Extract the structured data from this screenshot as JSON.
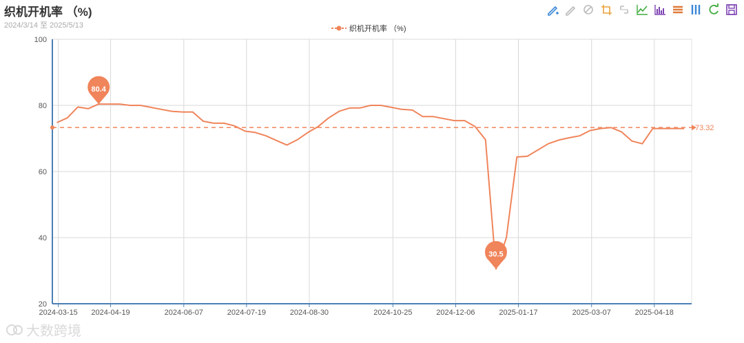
{
  "header": {
    "title": "织机开机率 （%)",
    "date_range": "2024/3/14 至 2025/5/13"
  },
  "toolbar": [
    {
      "name": "mark-line-icon",
      "color": "#3a86d6"
    },
    {
      "name": "eraser-icon",
      "color": "#bbbbbb"
    },
    {
      "name": "clear-icon",
      "color": "#bbbbbb"
    },
    {
      "name": "crop-icon",
      "color": "#e9a23b"
    },
    {
      "name": "zoom-reset-icon",
      "color": "#bbbbbb"
    },
    {
      "name": "line-chart-icon",
      "color": "#3bab3b"
    },
    {
      "name": "bar-chart-icon",
      "color": "#7b3fb3"
    },
    {
      "name": "stack-icon",
      "color": "#e07b39"
    },
    {
      "name": "tiled-icon",
      "color": "#3a86d6"
    },
    {
      "name": "refresh-icon",
      "color": "#3bab3b"
    },
    {
      "name": "save-icon",
      "color": "#7b3fb3"
    }
  ],
  "watermark": "大数跨境",
  "chart_data": {
    "type": "line",
    "series": [
      {
        "name": "织机开机率 （%)",
        "color": "#f0845a",
        "x": [
          "2024-03-14",
          "2024-03-21",
          "2024-03-28",
          "2024-04-04",
          "2024-04-11",
          "2024-04-18",
          "2024-04-25",
          "2024-05-02",
          "2024-05-09",
          "2024-05-16",
          "2024-05-23",
          "2024-05-30",
          "2024-06-06",
          "2024-06-13",
          "2024-06-20",
          "2024-06-27",
          "2024-07-04",
          "2024-07-11",
          "2024-07-18",
          "2024-07-25",
          "2024-08-01",
          "2024-08-08",
          "2024-08-15",
          "2024-08-22",
          "2024-08-29",
          "2024-09-05",
          "2024-09-12",
          "2024-09-19",
          "2024-09-26",
          "2024-10-03",
          "2024-10-10",
          "2024-10-17",
          "2024-10-24",
          "2024-10-31",
          "2024-11-07",
          "2024-11-14",
          "2024-11-21",
          "2024-11-28",
          "2024-12-05",
          "2024-12-12",
          "2024-12-19",
          "2024-12-26",
          "2025-01-02",
          "2025-01-09",
          "2025-01-16",
          "2025-01-23",
          "2025-02-06",
          "2025-02-13",
          "2025-02-20",
          "2025-02-27",
          "2025-03-06",
          "2025-03-13",
          "2025-03-20",
          "2025-03-27",
          "2025-04-03",
          "2025-04-10",
          "2025-04-17",
          "2025-04-24",
          "2025-05-01",
          "2025-05-08"
        ],
        "y": [
          74.8,
          76.2,
          79.5,
          79.0,
          80.4,
          80.4,
          80.4,
          80.0,
          80.0,
          79.4,
          78.8,
          78.2,
          78.0,
          78.0,
          75.2,
          74.6,
          74.6,
          73.8,
          72.2,
          71.8,
          70.8,
          69.4,
          68.0,
          69.6,
          71.8,
          73.6,
          76.2,
          78.2,
          79.2,
          79.2,
          80.0,
          80.0,
          79.4,
          78.8,
          78.6,
          76.6,
          76.6,
          76.0,
          75.4,
          75.4,
          73.6,
          69.6,
          30.5,
          40.0,
          64.4,
          64.6,
          68.4,
          69.5,
          70.2,
          70.8,
          72.4,
          73.0,
          73.3,
          72.0,
          69.2,
          68.4,
          73.0,
          73.0,
          73.0,
          73.0
        ]
      }
    ],
    "x_range": [
      "2024-03-11",
      "2025-05-13"
    ],
    "x_ticks": [
      "2024-03-15",
      "2024-04-19",
      "2024-06-07",
      "2024-07-19",
      "2024-08-30",
      "2024-10-25",
      "2024-12-06",
      "2025-01-17",
      "2025-03-07",
      "2025-04-18"
    ],
    "y_ticks": [
      20,
      40,
      60,
      80,
      100
    ],
    "ylim": [
      20,
      100
    ],
    "grid": true,
    "mark_points": [
      {
        "type": "max",
        "label": "80.4",
        "value": 80.4,
        "x": "2024-04-11"
      },
      {
        "type": "min",
        "label": "30.5",
        "value": 30.5,
        "x": "2025-01-02"
      }
    ],
    "mark_line": {
      "type": "average",
      "value": 73.32,
      "label": "73.32"
    },
    "legend_position": "top-center"
  }
}
